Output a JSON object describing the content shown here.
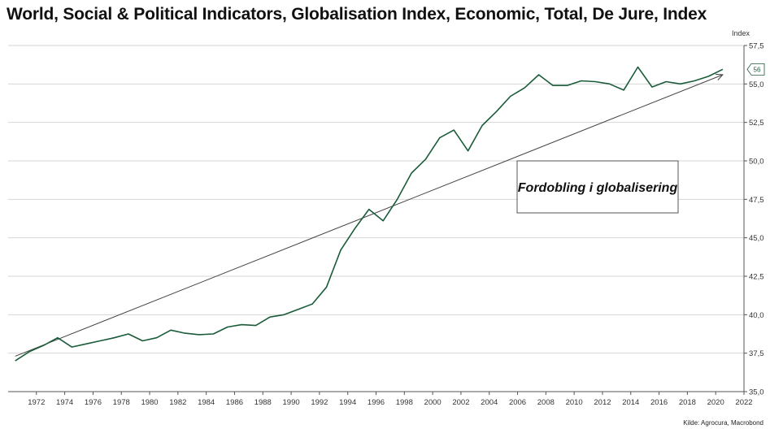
{
  "header": {
    "title": "World, Social & Political Indicators, Globalisation Index, Economic, Total, De Jure, Index"
  },
  "footer": {
    "source": "Kilde: Agrocura, Macrobond"
  },
  "chart_data": {
    "type": "line",
    "title": "World, Social & Political Indicators, Globalisation Index, Economic, Total, De Jure, Index",
    "ylabel": "Index",
    "xlabel": "",
    "xlim": [
      1970,
      2022
    ],
    "ylim": [
      35,
      57.5
    ],
    "x_ticks": [
      1972,
      1974,
      1976,
      1978,
      1980,
      1982,
      1984,
      1986,
      1988,
      1990,
      1992,
      1994,
      1996,
      1998,
      2000,
      2002,
      2004,
      2006,
      2008,
      2010,
      2012,
      2014,
      2016,
      2018,
      2020,
      2022
    ],
    "y_ticks": [
      "35,0",
      "37,5",
      "40,0",
      "42,5",
      "45,0",
      "47,5",
      "50,0",
      "52,5",
      "55,0",
      "57,5"
    ],
    "y_tick_values": [
      35,
      37.5,
      40,
      42.5,
      45,
      47.5,
      50,
      52.5,
      55,
      57.5
    ],
    "grid": true,
    "axis_position": "right",
    "series": [
      {
        "color": "#1a5c3a",
        "x": [
          1970.5,
          1971.5,
          1972.5,
          1973.5,
          1974.5,
          1975.5,
          1976.5,
          1977.5,
          1978.5,
          1979.5,
          1980.5,
          1981.5,
          1982.5,
          1983.5,
          1984.5,
          1985.5,
          1986.5,
          1987.5,
          1988.5,
          1989.5,
          1990.5,
          1991.5,
          1992.5,
          1993.5,
          1994.5,
          1995.5,
          1996.5,
          1997.5,
          1998.5,
          1999.5,
          2000.5,
          2001.5,
          2002.5,
          2003.5,
          2004.5,
          2005.5,
          2006.5,
          2007.5,
          2008.5,
          2009.5,
          2010.5,
          2011.5,
          2012.5,
          2013.5,
          2014.5,
          2015.5,
          2016.5,
          2017.5,
          2018.5,
          2019.5,
          2020.5
        ],
        "values": [
          37.0,
          37.6,
          38.0,
          38.5,
          37.9,
          38.1,
          38.3,
          38.5,
          38.75,
          38.3,
          38.5,
          39.0,
          38.8,
          38.7,
          38.75,
          39.2,
          39.35,
          39.3,
          39.85,
          40.0,
          40.35,
          40.7,
          41.8,
          44.2,
          45.6,
          46.85,
          46.1,
          47.5,
          49.2,
          50.1,
          51.5,
          52.0,
          50.65,
          52.3,
          53.2,
          54.2,
          54.75,
          55.6,
          54.9,
          54.9,
          55.2,
          55.15,
          55.0,
          54.6,
          56.1,
          54.8,
          55.15,
          55.0,
          55.2,
          55.5,
          55.95
        ]
      }
    ],
    "trendline": {
      "x": [
        1970.5,
        2020.5
      ],
      "y": [
        37.3,
        55.6
      ]
    },
    "annotation": {
      "text": "Fordobling i globalisering"
    },
    "last_value_label": "56"
  }
}
